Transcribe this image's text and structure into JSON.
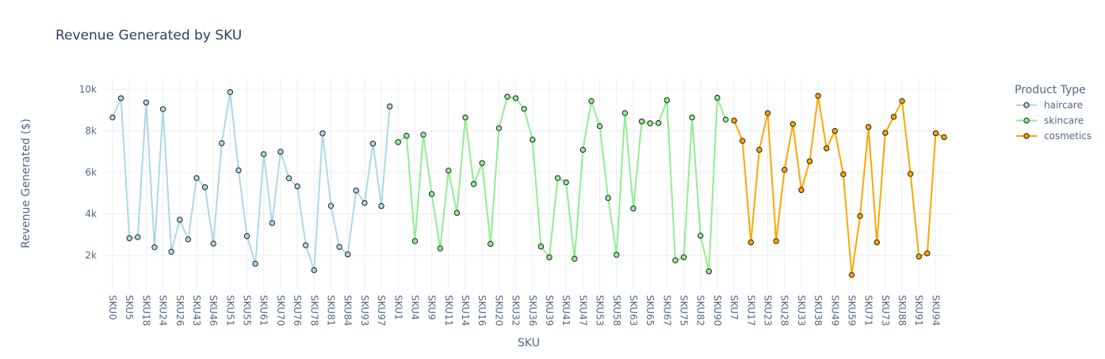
{
  "chart_data": {
    "type": "line",
    "title": "Revenue Generated by SKU",
    "x_label": "SKU",
    "y_label": "Revenue Generated ($)",
    "legend_title": "Product Type",
    "legend_position": "right",
    "grid": true,
    "categories": [
      "SKU0",
      null,
      "SKU5",
      null,
      "SKU18",
      null,
      "SKU24",
      null,
      "SKU26",
      null,
      "SKU43",
      null,
      "SKU46",
      null,
      "SKU51",
      null,
      "SKU55",
      null,
      "SKU61",
      null,
      "SKU70",
      null,
      "SKU76",
      null,
      "SKU78",
      null,
      "SKU81",
      null,
      "SKU84",
      null,
      "SKU93",
      null,
      "SKU97",
      null,
      "SKU1",
      null,
      "SKU4",
      null,
      "SKU9",
      null,
      "SKU11",
      null,
      "SKU14",
      null,
      "SKU16",
      null,
      "SKU20",
      null,
      "SKU32",
      null,
      "SKU36",
      null,
      "SKU39",
      null,
      "SKU41",
      null,
      "SKU47",
      null,
      "SKU53",
      null,
      "SKU58",
      null,
      "SKU63",
      null,
      "SKU65",
      null,
      "SKU67",
      null,
      "SKU75",
      null,
      "SKU82",
      null,
      "SKU90",
      null,
      "SKU7",
      null,
      "SKU17",
      null,
      "SKU23",
      null,
      "SKU28",
      null,
      "SKU33",
      null,
      "SKU38",
      null,
      "SKU49",
      null,
      "SKU59",
      null,
      "SKU71",
      null,
      "SKU73",
      null,
      "SKU88",
      null,
      "SKU91",
      null,
      "SKU94",
      null
    ],
    "series": [
      {
        "name": "haircare",
        "color": "#add8e6",
        "values": [
          8650,
          9580,
          2830,
          2880,
          9370,
          2390,
          9050,
          2180,
          3720,
          2770,
          5730,
          5290,
          2570,
          7410,
          9870,
          6100,
          2930,
          1600,
          6880,
          3560,
          7000,
          5720,
          5330,
          2490,
          1290,
          7880,
          4390,
          2410,
          2050,
          5130,
          4530,
          7390,
          4380,
          9180,
          null,
          null,
          null,
          null,
          null,
          null,
          null,
          null,
          null,
          null,
          null,
          null,
          null,
          null,
          null,
          null,
          null,
          null,
          null,
          null,
          null,
          null,
          null,
          null,
          null,
          null,
          null,
          null,
          null,
          null,
          null,
          null,
          null,
          null,
          null,
          null,
          null,
          null,
          null,
          null,
          null,
          null,
          null,
          null,
          null,
          null,
          null,
          null,
          null,
          null,
          null,
          null,
          null,
          null,
          null,
          null,
          null,
          null,
          null,
          null,
          null,
          null,
          null,
          null,
          null,
          null
        ]
      },
      {
        "name": "skincare",
        "color": "#90ee90",
        "values": [
          null,
          null,
          null,
          null,
          null,
          null,
          null,
          null,
          null,
          null,
          null,
          null,
          null,
          null,
          null,
          null,
          null,
          null,
          null,
          null,
          null,
          null,
          null,
          null,
          null,
          null,
          null,
          null,
          null,
          null,
          null,
          null,
          null,
          null,
          7460,
          7770,
          2690,
          7820,
          4960,
          2340,
          6090,
          4050,
          8650,
          5440,
          6450,
          2560,
          8130,
          9650,
          9580,
          9060,
          7580,
          2430,
          1910,
          5730,
          5520,
          1840,
          7090,
          9440,
          8230,
          4770,
          2030,
          8860,
          4260,
          8460,
          8370,
          8380,
          9480,
          1760,
          1910,
          8650,
          2950,
          1230,
          9600,
          8550,
          null,
          null,
          null,
          null,
          null,
          null,
          null,
          null,
          null,
          null,
          null,
          null,
          null,
          null,
          null,
          null,
          null,
          null,
          null,
          null,
          null,
          null,
          null,
          null,
          null,
          null
        ]
      },
      {
        "name": "cosmetics",
        "color": "#ffa500",
        "values": [
          null,
          null,
          null,
          null,
          null,
          null,
          null,
          null,
          null,
          null,
          null,
          null,
          null,
          null,
          null,
          null,
          null,
          null,
          null,
          null,
          null,
          null,
          null,
          null,
          null,
          null,
          null,
          null,
          null,
          null,
          null,
          null,
          null,
          null,
          null,
          null,
          null,
          null,
          null,
          null,
          null,
          null,
          null,
          null,
          null,
          null,
          null,
          null,
          null,
          null,
          null,
          null,
          null,
          null,
          null,
          null,
          null,
          null,
          null,
          null,
          null,
          null,
          null,
          null,
          null,
          null,
          null,
          null,
          null,
          null,
          null,
          null,
          null,
          null,
          8500,
          7520,
          2630,
          7090,
          8860,
          2690,
          6130,
          8330,
          5150,
          6540,
          9690,
          7160,
          8000,
          5910,
          1060,
          3900,
          8190,
          2630,
          7910,
          8680,
          9440,
          5930,
          1950,
          2100,
          7890,
          7700
        ]
      }
    ],
    "ylim": [
      400,
      10500
    ],
    "yticks": [
      {
        "value": 2000,
        "label": "2k"
      },
      {
        "value": 4000,
        "label": "4k"
      },
      {
        "value": 6000,
        "label": "6k"
      },
      {
        "value": 8000,
        "label": "8k"
      },
      {
        "value": 10000,
        "label": "10k"
      }
    ]
  }
}
